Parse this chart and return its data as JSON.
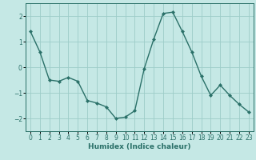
{
  "x": [
    0,
    1,
    2,
    3,
    4,
    5,
    6,
    7,
    8,
    9,
    10,
    11,
    12,
    13,
    14,
    15,
    16,
    17,
    18,
    19,
    20,
    21,
    22,
    23
  ],
  "y": [
    1.4,
    0.6,
    -0.5,
    -0.55,
    -0.4,
    -0.55,
    -1.3,
    -1.4,
    -1.55,
    -2.0,
    -1.95,
    -1.7,
    -0.05,
    1.1,
    2.1,
    2.15,
    1.4,
    0.6,
    -0.35,
    -1.1,
    -0.7,
    -1.1,
    -1.45,
    -1.75
  ],
  "line_color": "#2a7068",
  "marker": "D",
  "marker_size": 2.0,
  "bg_color": "#c5e8e5",
  "grid_color": "#9dccc8",
  "xlabel": "Humidex (Indice chaleur)",
  "xlim": [
    -0.5,
    23.5
  ],
  "ylim": [
    -2.5,
    2.5
  ],
  "yticks": [
    -2,
    -1,
    0,
    1,
    2
  ],
  "xticks": [
    0,
    1,
    2,
    3,
    4,
    5,
    6,
    7,
    8,
    9,
    10,
    11,
    12,
    13,
    14,
    15,
    16,
    17,
    18,
    19,
    20,
    21,
    22,
    23
  ],
  "tick_fontsize": 5.5,
  "xlabel_fontsize": 6.5,
  "line_width": 1.0
}
